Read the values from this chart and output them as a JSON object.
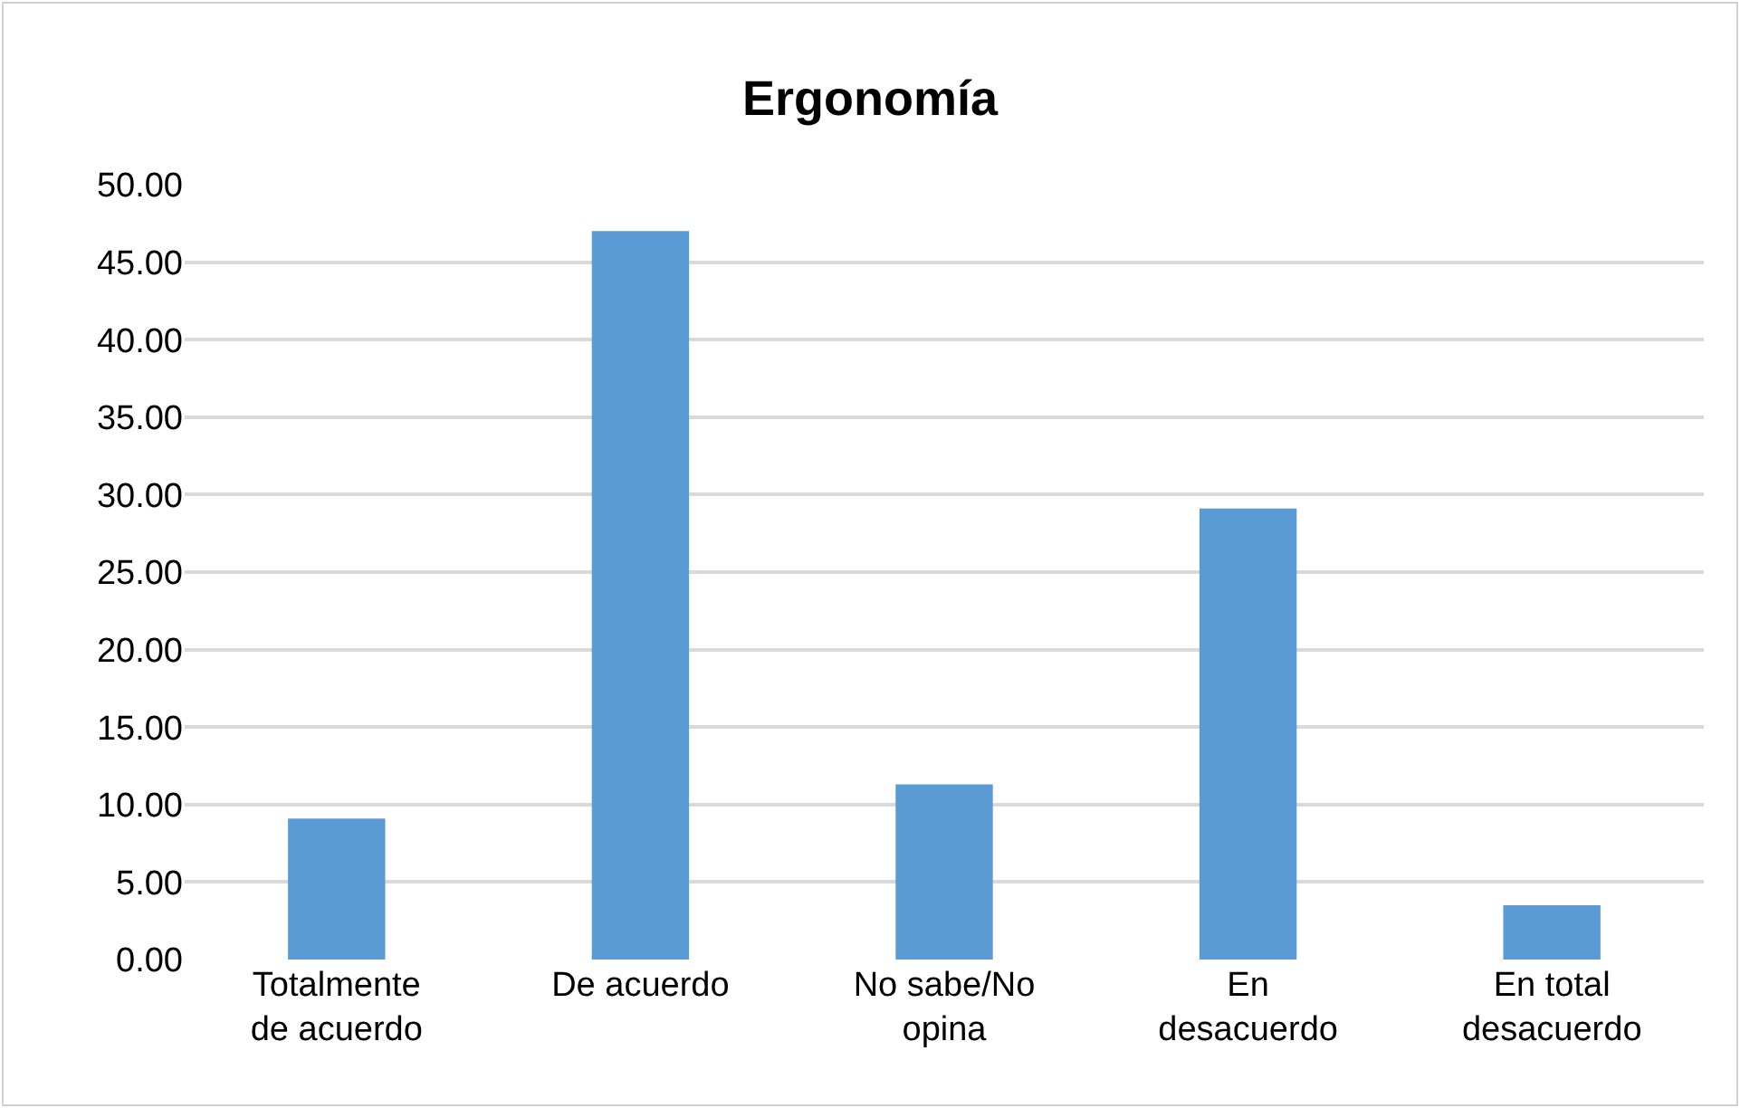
{
  "chart_data": {
    "type": "bar",
    "title": "Ergonomía",
    "categories": [
      "Totalmente de acuerdo",
      "De acuerdo",
      "No sabe/No opina",
      "En desacuerdo",
      "En total desacuerdo"
    ],
    "values": [
      9.1,
      47.0,
      11.3,
      29.1,
      3.5
    ],
    "color": "#5b9bd5",
    "ylim": [
      0,
      50
    ],
    "yticks": [
      {
        "value": 0,
        "label": "0.00"
      },
      {
        "value": 5,
        "label": "5.00"
      },
      {
        "value": 10,
        "label": "10.00"
      },
      {
        "value": 15,
        "label": "15.00"
      },
      {
        "value": 20,
        "label": "20.00"
      },
      {
        "value": 25,
        "label": "25.00"
      },
      {
        "value": 30,
        "label": "30.00"
      },
      {
        "value": 35,
        "label": "35.00"
      },
      {
        "value": 40,
        "label": "40.00"
      },
      {
        "value": 45,
        "label": "45.00"
      },
      {
        "value": 50,
        "label": "50.00"
      }
    ],
    "grid": "y"
  }
}
